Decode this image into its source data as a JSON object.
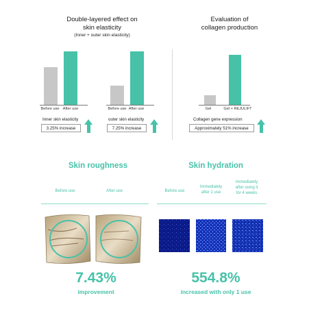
{
  "colors": {
    "accent": "#47c2a8",
    "before_bar": "#c7c7c7",
    "text": "#1a1a1a"
  },
  "elasticity": {
    "title_line1": "Double-layered effect on",
    "title_line2": "skin elasticity",
    "subtitle": "(Inner + outer skin elasticity)",
    "inner_label": "Inner skin elasticity",
    "inner_value": "3.25% increase",
    "outer_label": "outer skin elasticity",
    "outer_value": "7.25% increase"
  },
  "collagen": {
    "title_line1": "Evaluation of",
    "title_line2": "collagen production",
    "label": "Collagen gene expression",
    "value": "Approximately 51% increase"
  },
  "chart_data": [
    {
      "type": "bar",
      "categories": [
        "Before use",
        "After use"
      ],
      "values": [
        100,
        103.25
      ],
      "title": "Double-layered effect on skin elasticity",
      "subtitle": "(Inner + outer skin elasticity)",
      "xlabel": "Inner skin elasticity",
      "ylabel": "",
      "ylim": [
        92,
        104
      ],
      "annotation": "3.25% increase"
    },
    {
      "type": "bar",
      "categories": [
        "Before use",
        "After use"
      ],
      "values": [
        100,
        107.25
      ],
      "title": "",
      "xlabel": "outer skin elasticity",
      "ylabel": "",
      "ylim": [
        96,
        108
      ],
      "annotation": "7.25% increase"
    },
    {
      "type": "bar",
      "categories": [
        "Gel",
        "Gel + REJULIFT"
      ],
      "values": [
        100,
        151
      ],
      "title": "Evaluation of collagen production",
      "xlabel": "Collagen gene expression",
      "ylabel": "",
      "ylim": [
        88,
        160
      ],
      "annotation": "Approximately 51% increase"
    }
  ],
  "roughness": {
    "title": "Skin roughness",
    "col_before": "Before use",
    "col_after": "After use",
    "result_value": "7.43%",
    "result_label": "improvement"
  },
  "hydration": {
    "title": "Skin hydration",
    "col_before": "Before use",
    "col_after1_line1": "Immediately",
    "col_after1_line2": "after 1 use",
    "col_after4_line1": "Immediately",
    "col_after4_line2": "after using it",
    "col_after4_line3": "for 4 weeks",
    "result_value": "554.8%",
    "result_label": "increased with only 1 use"
  }
}
